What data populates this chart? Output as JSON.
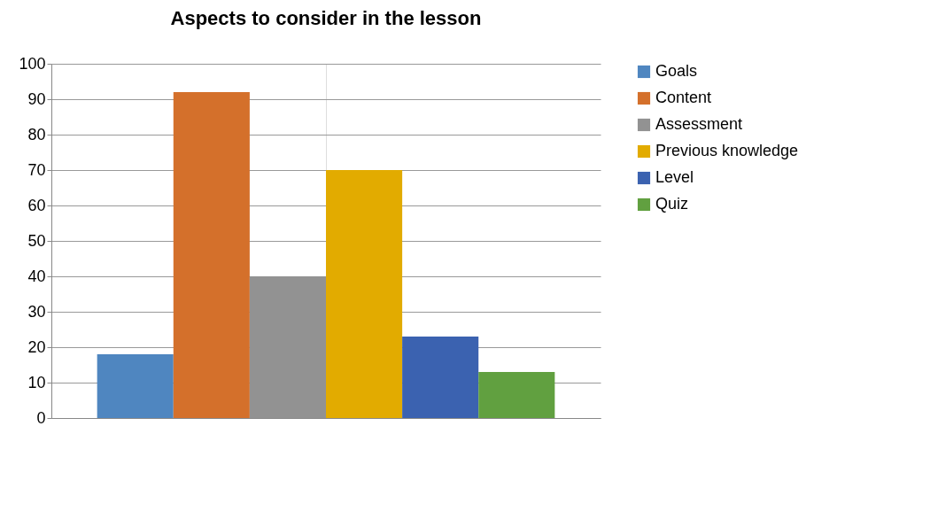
{
  "chart_data": {
    "type": "bar",
    "title": "Aspects to consider in the lesson",
    "categories": [
      null
    ],
    "series": [
      {
        "name": "Goals",
        "color": "#4f86c0",
        "values": [
          18
        ]
      },
      {
        "name": "Content",
        "color": "#d4702b",
        "values": [
          92
        ]
      },
      {
        "name": "Assessment",
        "color": "#929292",
        "values": [
          40
        ]
      },
      {
        "name": "Previous knowledge",
        "color": "#e2ab00",
        "values": [
          70
        ]
      },
      {
        "name": "Level",
        "color": "#3b62b0",
        "values": [
          23
        ]
      },
      {
        "name": "Quiz",
        "color": "#61a040",
        "values": [
          13
        ]
      }
    ],
    "ylim": [
      0,
      100
    ],
    "yticks": [
      0,
      10,
      20,
      30,
      40,
      50,
      60,
      70,
      80,
      90,
      100
    ],
    "grid": true,
    "legend": "right"
  }
}
